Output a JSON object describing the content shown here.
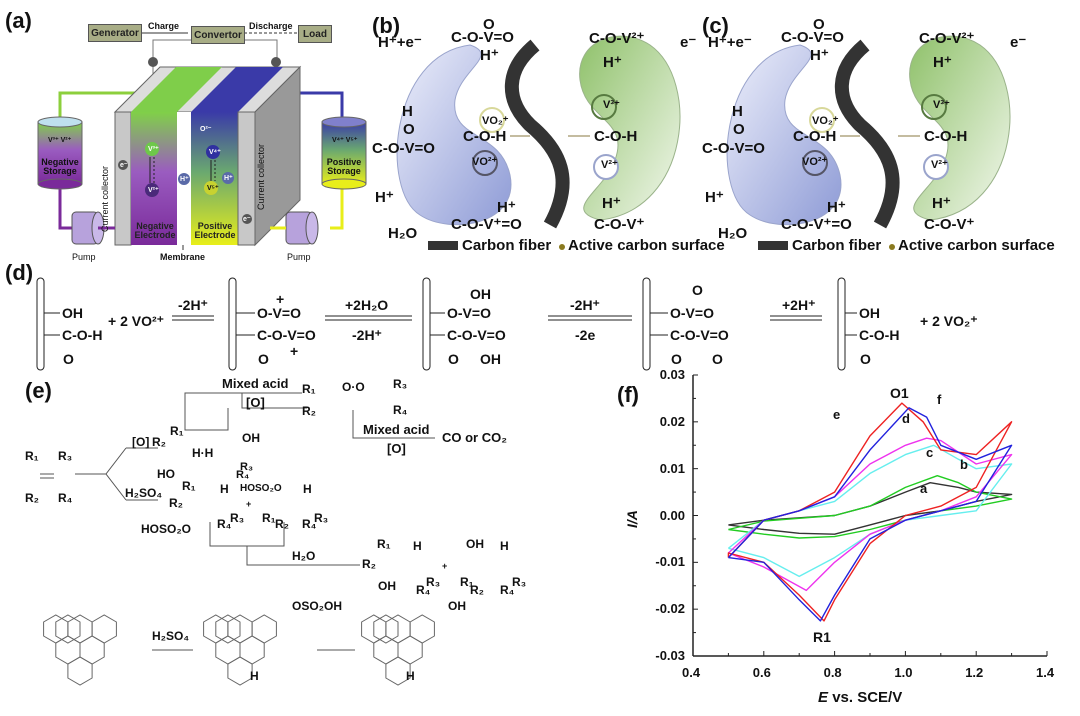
{
  "panel_a": {
    "label": "(a)",
    "generator": "Generator",
    "charge": "Charge",
    "convertor": "Convertor",
    "discharge": "Discharge",
    "load": "Load",
    "neg_storage_ions": "V³⁺ V²⁺",
    "neg_storage": "Negative Storage",
    "pos_storage_ions": "V⁴⁺ V⁵⁺",
    "pos_storage": "Positive Storage",
    "current_collector": "Current collector",
    "neg_electrode": "Negative Electrode",
    "pos_electrode": "Positive Electrode",
    "pump": "Pump",
    "membrane": "Membrane",
    "electron": "e⁻",
    "proton": "H⁺",
    "oxygen": "O²⁻",
    "v3": "V³⁺",
    "v2": "V²⁺",
    "v4": "V⁴⁺",
    "v5": "V⁵⁺",
    "colors": {
      "negative": "#7a2a9a",
      "negative_top": "#7fce4a",
      "positive": "#e8ee1a",
      "positive_top": "#3a3aa8",
      "collector": "#c8c8c8"
    }
  },
  "panel_b": {
    "label": "(b)",
    "texts": [
      "O",
      "C-O-V=O",
      "H⁺+e⁻",
      "H⁺",
      "VO₂⁺",
      "H",
      "O",
      "C-O-V=O",
      "C-O-H",
      "VO²⁺",
      "H⁺",
      "H⁺",
      "H₂O",
      "C-O-V⁺=O",
      "C-O-V²⁺",
      "e⁻",
      "H⁺",
      "V³⁺",
      "C-O-H",
      "V²⁺",
      "H⁺",
      "C-O-V⁺"
    ],
    "legend_fiber": "Carbon fiber",
    "legend_surface": "Active carbon surface"
  },
  "panel_c": {
    "label": "(c)",
    "texts": [
      "O",
      "C-O-V=O",
      "H⁺+e⁻",
      "H⁺",
      "VO₂⁺",
      "H",
      "O",
      "C-O-V=O",
      "C-O-H",
      "VO²⁺",
      "H⁺",
      "H⁺",
      "H₂O",
      "C-O-V⁺=O",
      "C-O-V²⁺",
      "e⁻",
      "H⁺",
      "V³⁺",
      "C-O-H",
      "V²⁺",
      "H⁺",
      "C-O-V⁺"
    ],
    "legend_fiber": "Carbon fiber",
    "legend_surface": "Active carbon surface"
  },
  "panel_d": {
    "label": "(d)",
    "s1": [
      "OH",
      "C-O-H",
      "O"
    ],
    "plus_vo2": "+  2 VO²⁺",
    "arrow1_top": "-2H⁺",
    "s2": [
      "+",
      "O-V=O",
      "C-O-V=O",
      "O",
      "+"
    ],
    "arrow2_top": "+2H₂O",
    "arrow2_bottom": "-2H⁺",
    "s3": [
      "OH",
      "O-V=O",
      "C-O-V=O",
      "O",
      "OH"
    ],
    "arrow3_top": "-2H⁺",
    "arrow3_bottom": "-2e",
    "s4": [
      "O",
      "O-V=O",
      "C-O-V=O",
      "O",
      "O"
    ],
    "arrow4_top": "+2H⁺",
    "s5": [
      "OH",
      "C-O-H",
      "O"
    ],
    "plus_vo2p": "+  2 VO₂⁺"
  },
  "panel_e": {
    "label": "(e)",
    "mixed_acid": "Mixed acid",
    "oxidant": "[O]",
    "co_co2": "CO or CO₂",
    "h2so4": "H₂SO₄",
    "h2o": "H₂O",
    "o_label": "[O]",
    "r": [
      "R₁",
      "R₂",
      "R₃",
      "R₄"
    ],
    "oh": "OH",
    "ho": "HO",
    "h": "H",
    "hh": "H·H",
    "hoso2o": "HOSO₂O",
    "oso2oh": "OSO₂OH",
    "plus": "+",
    "oo": "O·O"
  },
  "chart_data": {
    "type": "line",
    "panel_label": "(f)",
    "xlabel_italic": "E",
    "xlabel": "vs. SCE/V",
    "ylabel": "I/A",
    "xlim": [
      0.4,
      1.4
    ],
    "ylim": [
      -0.03,
      0.03
    ],
    "xticks": [
      0.4,
      0.6,
      0.8,
      1.0,
      1.2,
      1.4
    ],
    "xtick_labels": [
      "0.4",
      "0.6",
      "0.8",
      "1.0",
      "1.2",
      "1.4"
    ],
    "yticks": [
      0.03,
      0.02,
      0.01,
      0.0,
      -0.01,
      -0.02,
      -0.03
    ],
    "ytick_labels": [
      "0.03",
      "0.02",
      "0.01",
      "0.00",
      "-0.01",
      "-0.02",
      "-0.03"
    ],
    "annotations": {
      "oxidation_peak": "O1",
      "reduction_peak": "R1"
    },
    "grid": false,
    "series": [
      {
        "name": "a",
        "color": "#333333",
        "E": [
          0.5,
          0.6,
          0.7,
          0.8,
          0.9,
          1.0,
          1.07,
          1.15,
          1.2,
          1.3,
          1.2,
          1.1,
          1.0,
          0.9,
          0.8,
          0.7,
          0.6,
          0.5
        ],
        "I": [
          -0.002,
          -0.001,
          -0.0005,
          0,
          0.002,
          0.005,
          0.007,
          0.006,
          0.005,
          0.0045,
          0.003,
          0.001,
          0,
          -0.002,
          -0.004,
          -0.0038,
          -0.003,
          -0.002
        ]
      },
      {
        "name": "b",
        "color": "#22cc22",
        "E": [
          0.5,
          0.6,
          0.7,
          0.8,
          0.9,
          1.0,
          1.09,
          1.15,
          1.2,
          1.3,
          1.2,
          1.1,
          1.0,
          0.9,
          0.8,
          0.7,
          0.6,
          0.5
        ],
        "I": [
          -0.003,
          -0.0012,
          -0.0006,
          0,
          0.002,
          0.006,
          0.0085,
          0.007,
          0.005,
          0.0035,
          0.002,
          0.001,
          -0.001,
          -0.003,
          -0.0045,
          -0.0048,
          -0.004,
          -0.003
        ]
      },
      {
        "name": "c",
        "color": "#66eeee",
        "E": [
          0.5,
          0.6,
          0.7,
          0.8,
          0.9,
          1.0,
          1.08,
          1.15,
          1.2,
          1.3,
          1.2,
          1.1,
          1.0,
          0.9,
          0.8,
          0.7,
          0.6,
          0.5
        ],
        "I": [
          -0.007,
          -0.001,
          0.001,
          0.003,
          0.009,
          0.013,
          0.015,
          0.012,
          0.01,
          0.011,
          0.001,
          0,
          -0.001,
          -0.004,
          -0.009,
          -0.013,
          -0.009,
          -0.007
        ]
      },
      {
        "name": "d",
        "color": "#ee33ee",
        "E": [
          0.5,
          0.6,
          0.7,
          0.8,
          0.9,
          1.0,
          1.06,
          1.1,
          1.2,
          1.3,
          1.2,
          1.1,
          1.0,
          0.9,
          0.8,
          0.72,
          0.6,
          0.5
        ],
        "I": [
          -0.008,
          -0.001,
          0.001,
          0.004,
          0.011,
          0.015,
          0.0165,
          0.016,
          0.011,
          0.013,
          0.004,
          0.001,
          -0.001,
          -0.004,
          -0.01,
          -0.016,
          -0.011,
          -0.008
        ]
      },
      {
        "name": "e",
        "color": "#ee2222",
        "E": [
          0.5,
          0.6,
          0.7,
          0.8,
          0.9,
          0.99,
          1.05,
          1.1,
          1.2,
          1.3,
          1.2,
          1.1,
          1.0,
          0.9,
          0.8,
          0.77,
          0.7,
          0.6,
          0.5
        ],
        "I": [
          -0.009,
          -0.001,
          0.001,
          0.005,
          0.017,
          0.024,
          0.02,
          0.014,
          0.013,
          0.02,
          0.006,
          0.002,
          0,
          -0.006,
          -0.018,
          -0.0225,
          -0.017,
          -0.01,
          -0.008
        ]
      },
      {
        "name": "f",
        "color": "#2222dd",
        "E": [
          0.5,
          0.6,
          0.7,
          0.8,
          0.9,
          1.01,
          1.06,
          1.1,
          1.2,
          1.3,
          1.2,
          1.1,
          1.0,
          0.9,
          0.8,
          0.76,
          0.7,
          0.6,
          0.5
        ],
        "I": [
          -0.009,
          -0.001,
          0.001,
          0.004,
          0.014,
          0.023,
          0.021,
          0.015,
          0.012,
          0.015,
          0.003,
          0.001,
          -0.001,
          -0.005,
          -0.017,
          -0.0225,
          -0.018,
          -0.01,
          -0.009
        ]
      }
    ]
  }
}
